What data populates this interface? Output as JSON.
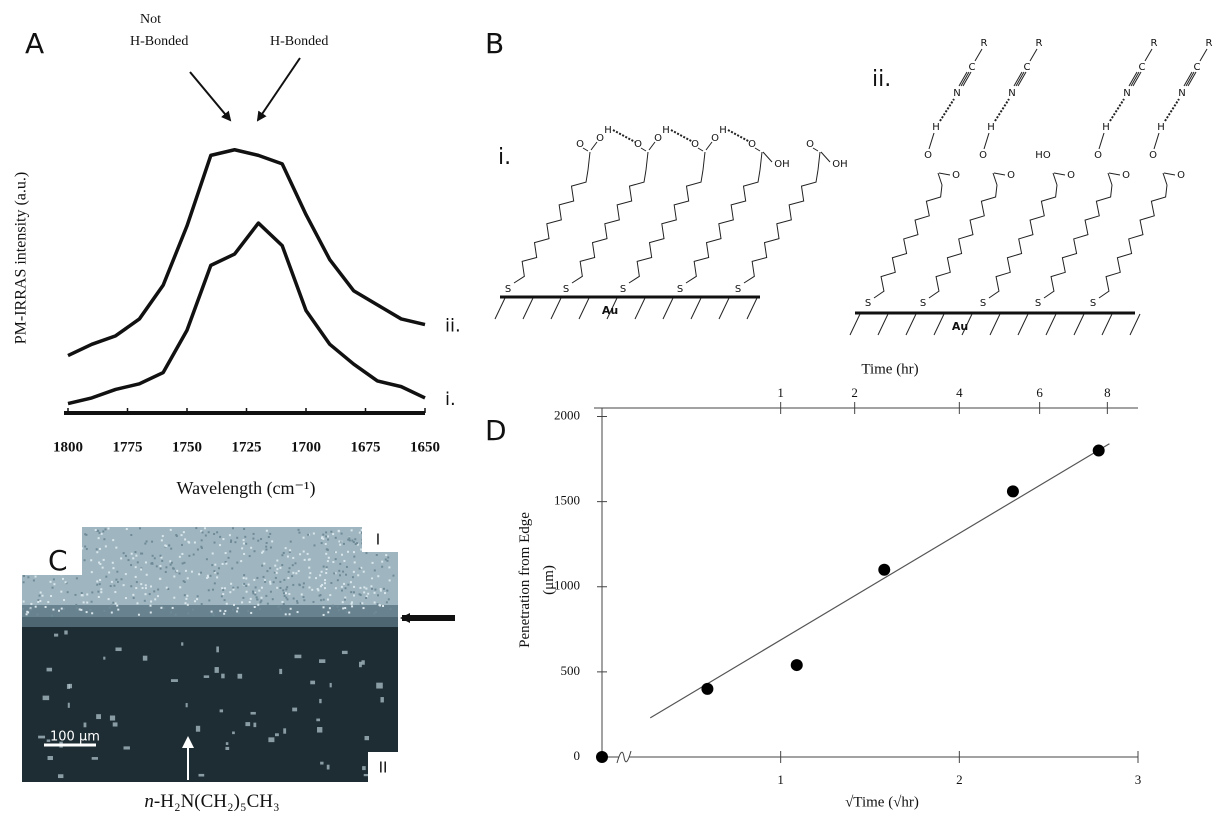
{
  "chart_data": [
    {
      "type": "line",
      "panel_label": "A",
      "y_label": "PM-IRRAS intensity (a.u.)",
      "x_label": "Wavelength (cm⁻¹)",
      "annotations": [
        [
          "Not",
          "H-Bonded"
        ],
        [
          "H-Bonded"
        ]
      ],
      "x": [
        1800,
        1790,
        1780,
        1770,
        1760,
        1750,
        1740,
        1730,
        1720,
        1710,
        1700,
        1690,
        1680,
        1670,
        1660,
        1650
      ],
      "xlim": [
        1800,
        1650
      ],
      "xticks": [
        1800,
        1775,
        1750,
        1725,
        1700,
        1675,
        1650
      ],
      "ylim": [
        0,
        10
      ],
      "series": [
        {
          "name": "ii.",
          "color": "#111111",
          "values": [
            2.0,
            2.4,
            2.7,
            3.3,
            4.5,
            6.6,
            9.1,
            9.3,
            9.1,
            8.8,
            7.0,
            5.4,
            4.3,
            3.8,
            3.3,
            3.1
          ]
        },
        {
          "name": "i.",
          "color": "#111111",
          "values": [
            0.3,
            0.5,
            0.8,
            1.0,
            1.4,
            2.9,
            5.2,
            5.6,
            6.7,
            5.9,
            3.6,
            2.4,
            1.7,
            1.1,
            0.9,
            0.5
          ]
        }
      ]
    },
    {
      "type": "scatter",
      "panel_label": "D",
      "x_label": "√Time (√hr)",
      "y_label": [
        "Penetration from Edge",
        "(μm)"
      ],
      "x2_label": "Time (hr)",
      "x": [
        0,
        0.59,
        1.09,
        1.58,
        2.3,
        2.78
      ],
      "values": [
        0,
        400,
        540,
        1100,
        1560,
        1800
      ],
      "color": "#000000",
      "xlim": [
        0,
        3
      ],
      "ylim": [
        0,
        2050
      ],
      "xticks": [
        1,
        2,
        3
      ],
      "yticks": [
        0,
        500,
        1000,
        1500,
        2000
      ],
      "x2ticks": [
        1,
        2,
        4,
        6,
        8
      ],
      "x2scale": "sqrt",
      "fit": {
        "x": [
          0.27,
          2.84
        ],
        "values": [
          230,
          1840
        ]
      }
    }
  ],
  "panel_b": {
    "label": "B",
    "subpanels": [
      "i.",
      "ii."
    ],
    "surface": "Au",
    "sulfur": "S",
    "oxygen": "O",
    "hydrogen": "H",
    "hydroxyl": "OH",
    "hydroxyl_reversed": "HO",
    "nitrogen": "N",
    "carbon": "C",
    "r_group": "R"
  },
  "panel_c": {
    "label": "C",
    "region_top": "I",
    "region_bottom": "II",
    "scale_bar": "100 μm",
    "reagent_prefix": "n-",
    "reagent": "H₂N(CH₂)₅CH₃"
  }
}
